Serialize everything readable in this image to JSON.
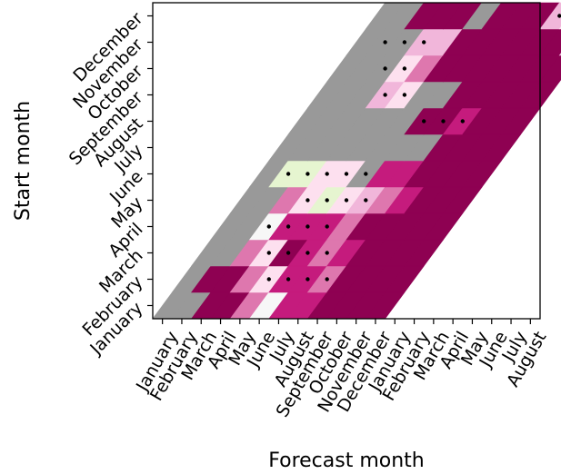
{
  "chart_data": {
    "type": "heatmap",
    "title": "",
    "xlabel": "Forecast month",
    "ylabel": "Start month",
    "x_ticks": [
      "January",
      "February",
      "March",
      "April",
      "May",
      "June",
      "July",
      "August",
      "September",
      "October",
      "November",
      "December",
      "January",
      "February",
      "March",
      "April",
      "May",
      "June",
      "July",
      "August"
    ],
    "y_ticks": [
      "January",
      "February",
      "March",
      "April",
      "May",
      "June",
      "July",
      "August",
      "September",
      "October",
      "November",
      "December"
    ],
    "lead_time_months": 12,
    "grid": false,
    "legend": "none",
    "colors": {
      "dark_magenta": "#8e0152",
      "magenta": "#c51b7d",
      "pink": "#de77ae",
      "light_pink": "#f1b6da",
      "pale_pink": "#fde0ef",
      "off_white": "#f7f7f7",
      "pale_green": "#e6f5d0",
      "light_green": "#b8e186",
      "gray": "#999999"
    },
    "rows": [
      {
        "start": "January",
        "cells": [
          "gray",
          "gray",
          "dark_magenta",
          "dark_magenta",
          "pink",
          "off_white",
          "magenta",
          "magenta",
          "dark_magenta",
          "dark_magenta",
          "dark_magenta",
          "dark_magenta"
        ],
        "dots": []
      },
      {
        "start": "February",
        "cells": [
          "gray",
          "dark_magenta",
          "dark_magenta",
          "pink",
          "pale_pink",
          "magenta",
          "magenta",
          "pink",
          "dark_magenta",
          "dark_magenta",
          "dark_magenta",
          "dark_magenta"
        ],
        "dots": [
          4,
          5,
          6,
          7
        ]
      },
      {
        "start": "March",
        "cells": [
          "gray",
          "gray",
          "pink",
          "pale_pink",
          "dark_magenta",
          "magenta",
          "pink",
          "magenta",
          "dark_magenta",
          "dark_magenta",
          "dark_magenta",
          "dark_magenta"
        ],
        "dots": [
          3,
          4,
          5,
          6
        ]
      },
      {
        "start": "April",
        "cells": [
          "gray",
          "gray",
          "off_white",
          "magenta",
          "magenta",
          "magenta",
          "pink",
          "dark_magenta",
          "dark_magenta",
          "dark_magenta",
          "dark_magenta",
          "dark_magenta"
        ],
        "dots": [
          2,
          3,
          4,
          5
        ]
      },
      {
        "start": "May",
        "cells": [
          "gray",
          "gray",
          "pink",
          "pale_pink",
          "pale_green",
          "pale_pink",
          "light_pink",
          "pink",
          "magenta",
          "dark_magenta",
          "dark_magenta",
          "dark_magenta"
        ],
        "dots": [
          3,
          4,
          5,
          6
        ]
      },
      {
        "start": "June",
        "cells": [
          "gray",
          "pale_green",
          "pale_green",
          "pale_pink",
          "pale_pink",
          "gray",
          "magenta",
          "magenta",
          "dark_magenta",
          "dark_magenta",
          "dark_magenta",
          "dark_magenta"
        ],
        "dots": [
          1,
          2,
          3,
          4,
          5
        ]
      },
      {
        "start": "July",
        "cells": [
          "gray",
          "gray",
          "gray",
          "gray",
          "gray",
          "gray",
          "gray",
          "gray",
          "dark_magenta",
          "dark_magenta",
          "dark_magenta",
          "dark_magenta"
        ],
        "dots": []
      },
      {
        "start": "August",
        "cells": [
          "gray",
          "gray",
          "gray",
          "gray",
          "gray",
          "gray",
          "dark_magenta",
          "dark_magenta",
          "magenta",
          "dark_magenta",
          "dark_magenta",
          "dark_magenta"
        ],
        "dots": [
          6,
          7,
          8
        ]
      },
      {
        "start": "September",
        "cells": [
          "gray",
          "gray",
          "gray",
          "light_pink",
          "pale_pink",
          "gray",
          "gray",
          "dark_magenta",
          "dark_magenta",
          "dark_magenta",
          "dark_magenta",
          "dark_magenta"
        ],
        "dots": [
          3,
          4
        ]
      },
      {
        "start": "October",
        "cells": [
          "gray",
          "gray",
          "gray",
          "pale_pink",
          "pink",
          "dark_magenta",
          "dark_magenta",
          "dark_magenta",
          "dark_magenta",
          "dark_magenta",
          "dark_magenta",
          "dark_magenta"
        ],
        "dots": [
          2,
          3
        ]
      },
      {
        "start": "November",
        "cells": [
          "gray",
          "gray",
          "gray",
          "light_pink",
          "light_pink",
          "dark_magenta",
          "dark_magenta",
          "dark_magenta",
          "dark_magenta",
          "dark_magenta",
          "dark_magenta",
          "light_pink"
        ],
        "dots": [
          1,
          2,
          3
        ]
      },
      {
        "start": "December",
        "cells": [
          "gray",
          "gray",
          "dark_magenta",
          "dark_magenta",
          "dark_magenta",
          "gray",
          "dark_magenta",
          "dark_magenta",
          "dark_magenta",
          "light_pink",
          "pale_pink",
          "dark_magenta"
        ],
        "dots": [
          9,
          10,
          11
        ]
      }
    ]
  }
}
